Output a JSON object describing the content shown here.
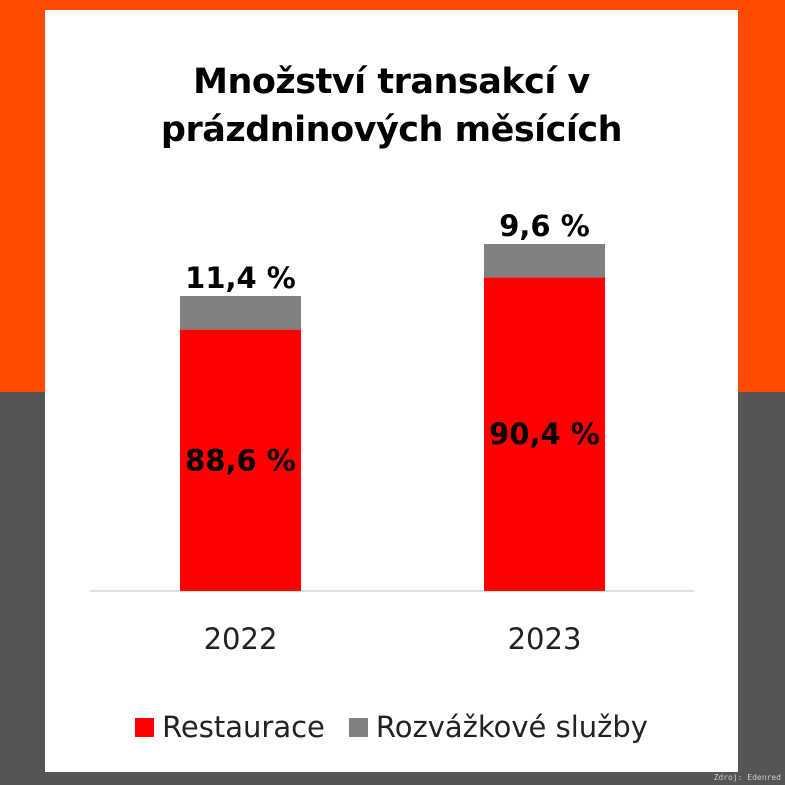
{
  "chart_data": {
    "type": "bar",
    "stacked": true,
    "title": "Množství transakcí v prázdninových měsících",
    "categories": [
      "2022",
      "2023"
    ],
    "series": [
      {
        "name": "Restaurace",
        "values": [
          88.6,
          90.4
        ],
        "labels": [
          "88,6 %",
          "90,4 %"
        ],
        "color": "#ff0000"
      },
      {
        "name": "Rozvážkové služby",
        "values": [
          11.4,
          9.6
        ],
        "labels": [
          "11,4 %",
          "9,6 %"
        ],
        "color": "#808080"
      }
    ],
    "xlabel": "",
    "ylabel": "",
    "grid": false,
    "legend": "bottom"
  },
  "title_lines": [
    "Množství transakcí v",
    "prázdninových měsících"
  ],
  "source": "Zdroj: Edenred",
  "colors": {
    "background_top": "#ff4b00",
    "background_bottom": "#555555"
  }
}
